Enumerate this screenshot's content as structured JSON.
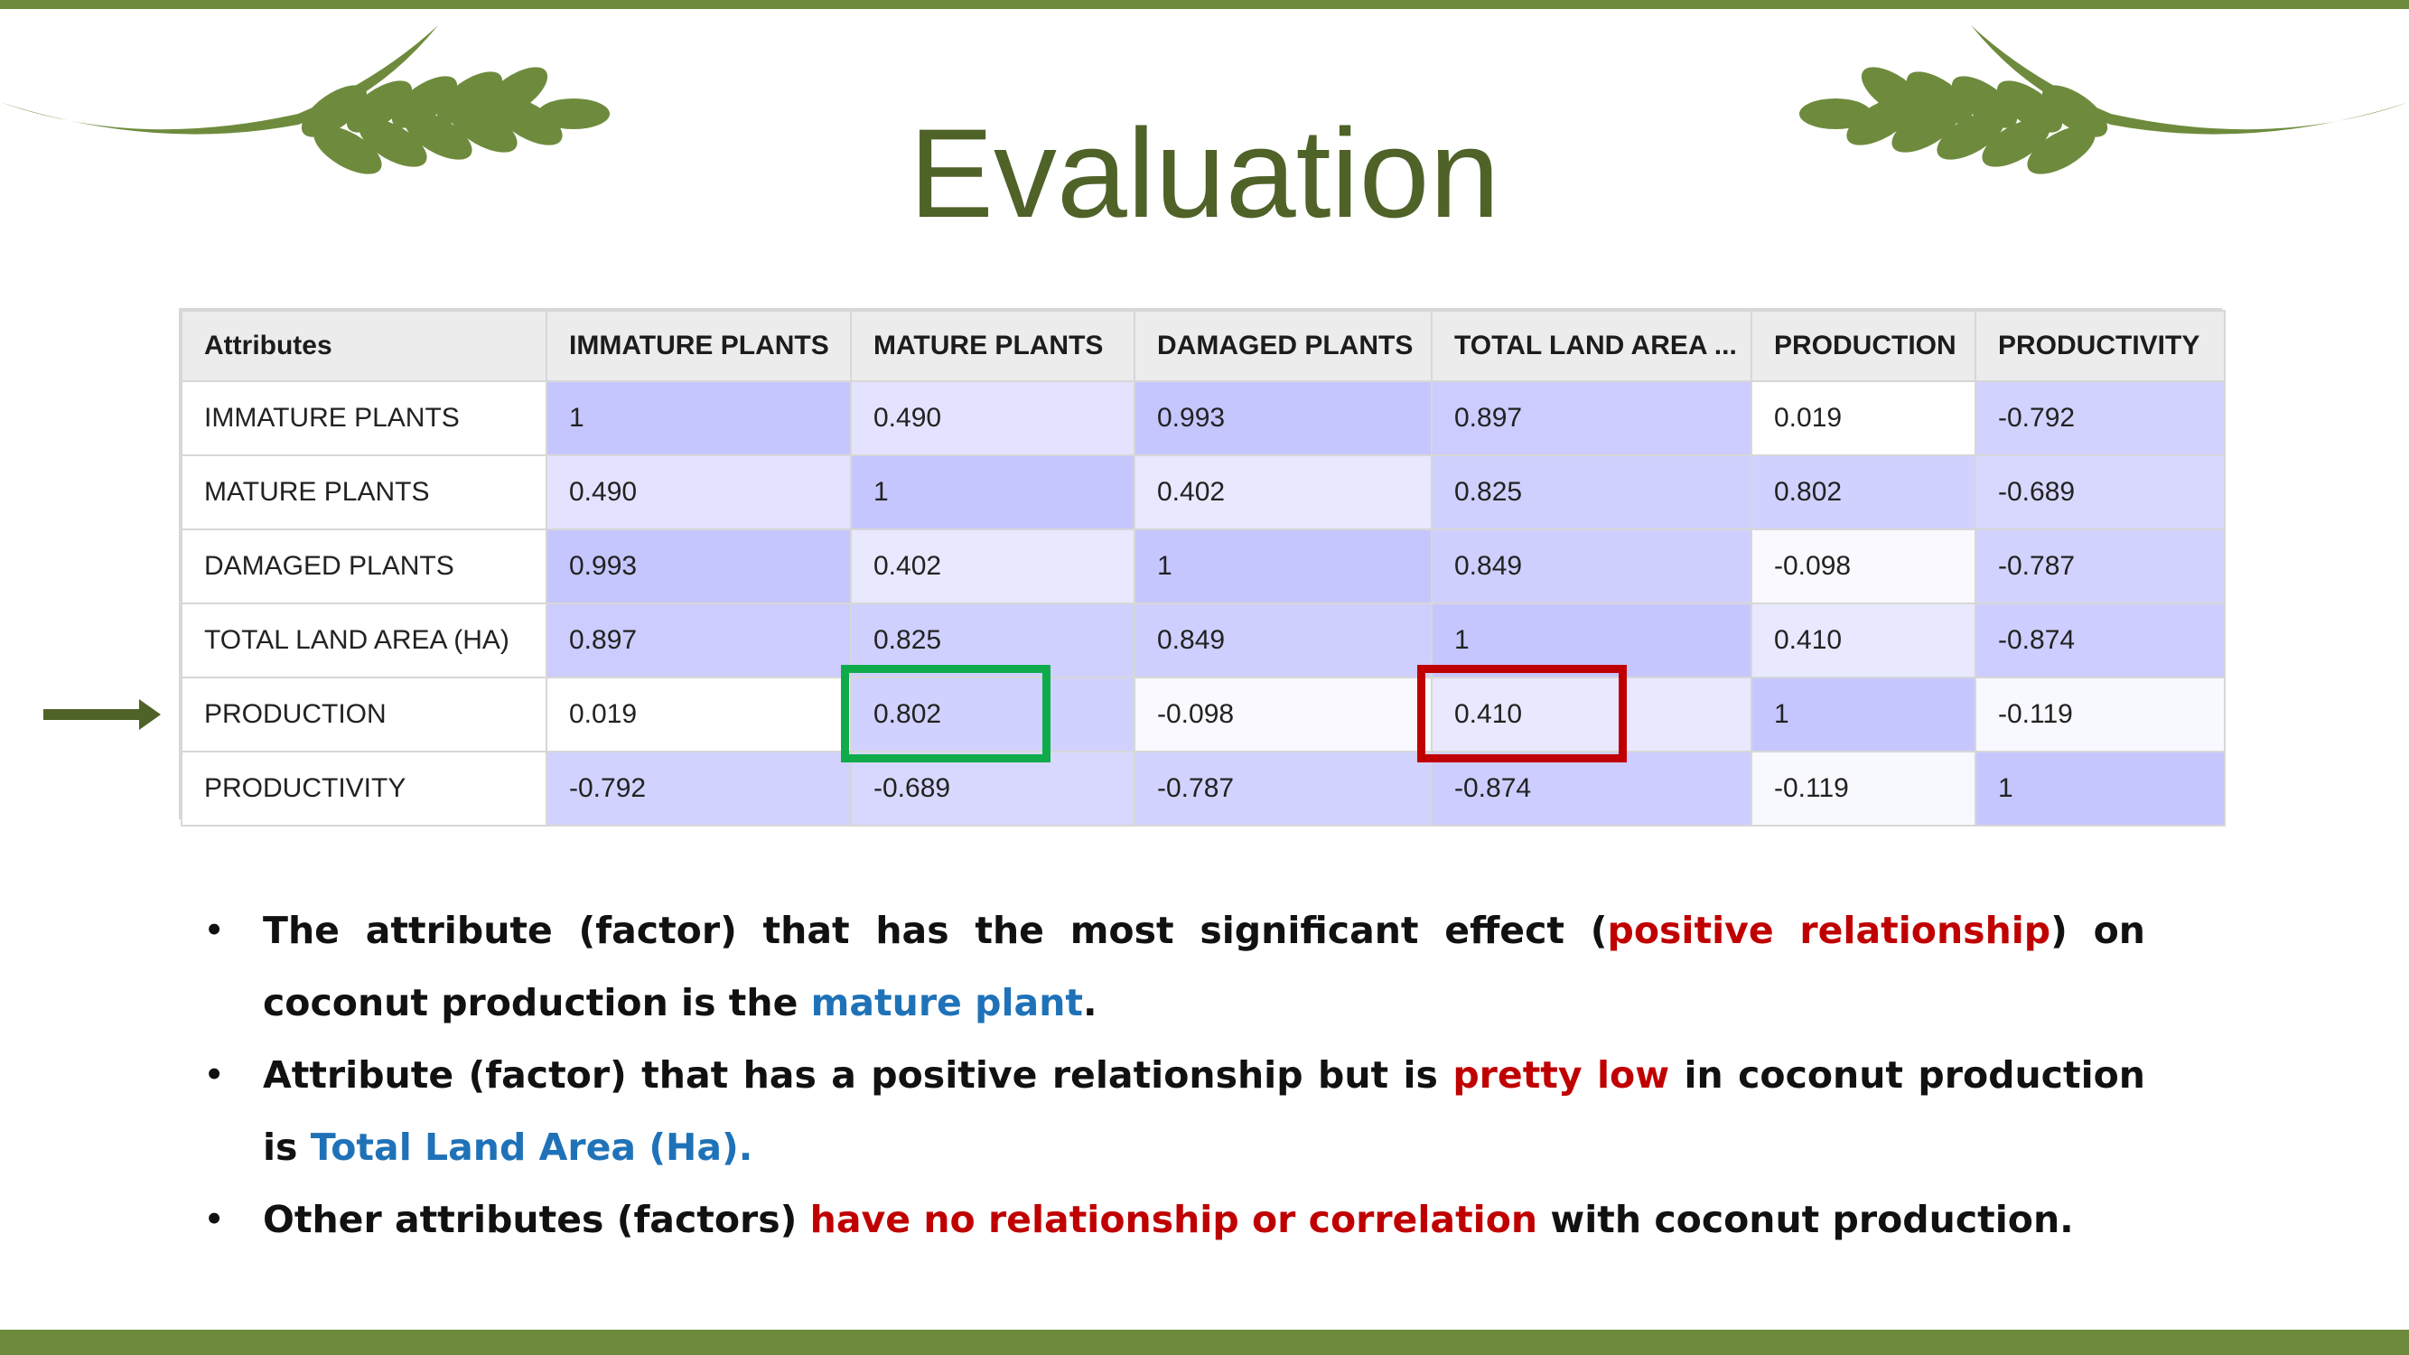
{
  "title": "Evaluation",
  "table": {
    "columns": [
      "Attributes",
      "IMMATURE PLANTS",
      "MATURE PLANTS",
      "DAMAGED PLANTS",
      "TOTAL LAND AREA ...",
      "PRODUCTION",
      "PRODUCTIVITY"
    ],
    "rows": [
      {
        "label": "IMMATURE PLANTS",
        "values": [
          "1",
          "0.490",
          "0.993",
          "0.897",
          "0.019",
          "-0.792"
        ]
      },
      {
        "label": "MATURE PLANTS",
        "values": [
          "0.490",
          "1",
          "0.402",
          "0.825",
          "0.802",
          "-0.689"
        ]
      },
      {
        "label": "DAMAGED PLANTS",
        "values": [
          "0.993",
          "0.402",
          "1",
          "0.849",
          "-0.098",
          "-0.787"
        ]
      },
      {
        "label": "TOTAL LAND AREA (HA)",
        "values": [
          "0.897",
          "0.825",
          "0.849",
          "1",
          "0.410",
          "-0.874"
        ]
      },
      {
        "label": "PRODUCTION",
        "values": [
          "0.019",
          "0.802",
          "-0.098",
          "0.410",
          "1",
          "-0.119"
        ]
      },
      {
        "label": "PRODUCTIVITY",
        "values": [
          "-0.792",
          "-0.689",
          "-0.787",
          "-0.874",
          "-0.119",
          "1"
        ]
      }
    ]
  },
  "bullets": [
    [
      {
        "text": "The attribute (factor) that has the most significant effect (",
        "style": ""
      },
      {
        "text": "positive relationship",
        "style": "red"
      },
      {
        "text": ") on coconut production is the ",
        "style": ""
      },
      {
        "text": "mature plant",
        "style": "blue"
      },
      {
        "text": ".",
        "style": ""
      }
    ],
    [
      {
        "text": "Attribute (factor) that has a positive relationship but is ",
        "style": ""
      },
      {
        "text": "pretty low",
        "style": "red"
      },
      {
        "text": " in coconut production is ",
        "style": ""
      },
      {
        "text": "Total Land Area (Ha).",
        "style": "blue"
      }
    ],
    [
      {
        "text": "Other attributes (factors) ",
        "style": ""
      },
      {
        "text": "have no relationship or correlation",
        "style": "red"
      },
      {
        "text": " with coconut production.",
        "style": ""
      }
    ]
  ],
  "colors": {
    "frame_green": "#6e8b3d",
    "title_green": "#4f6228",
    "highlight_green": "#0fab4b",
    "highlight_red": "#c00000",
    "text_red": "#c00000",
    "text_blue": "#1f72b8"
  },
  "icons": [
    "wheat-decoration-icon",
    "wheat-decoration-icon",
    "right-arrow-icon"
  ]
}
